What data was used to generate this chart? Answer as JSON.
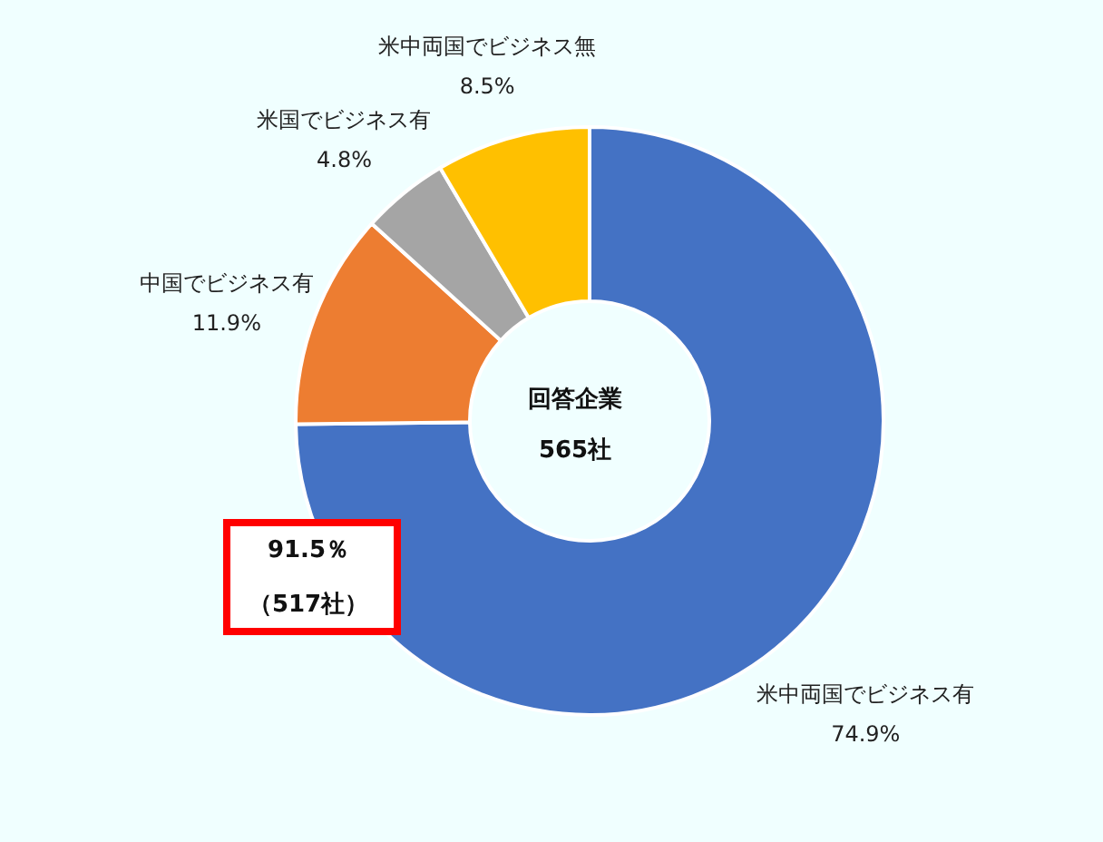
{
  "chart_data": {
    "type": "donut",
    "categories": [
      "米中両国でビジネス有",
      "中国でビジネス有",
      "米国でビジネス有",
      "米中両国でビジネス無"
    ],
    "values": [
      74.9,
      11.9,
      4.8,
      8.5
    ],
    "colors": [
      "#4472c4",
      "#ed7d31",
      "#a5a5a5",
      "#ffc000"
    ],
    "value_labels": [
      "74.9%",
      "11.9%",
      "4.8%",
      "8.5%"
    ],
    "annotations": [
      "回答企業",
      "565社",
      "91.5％",
      "（517社）"
    ]
  }
}
